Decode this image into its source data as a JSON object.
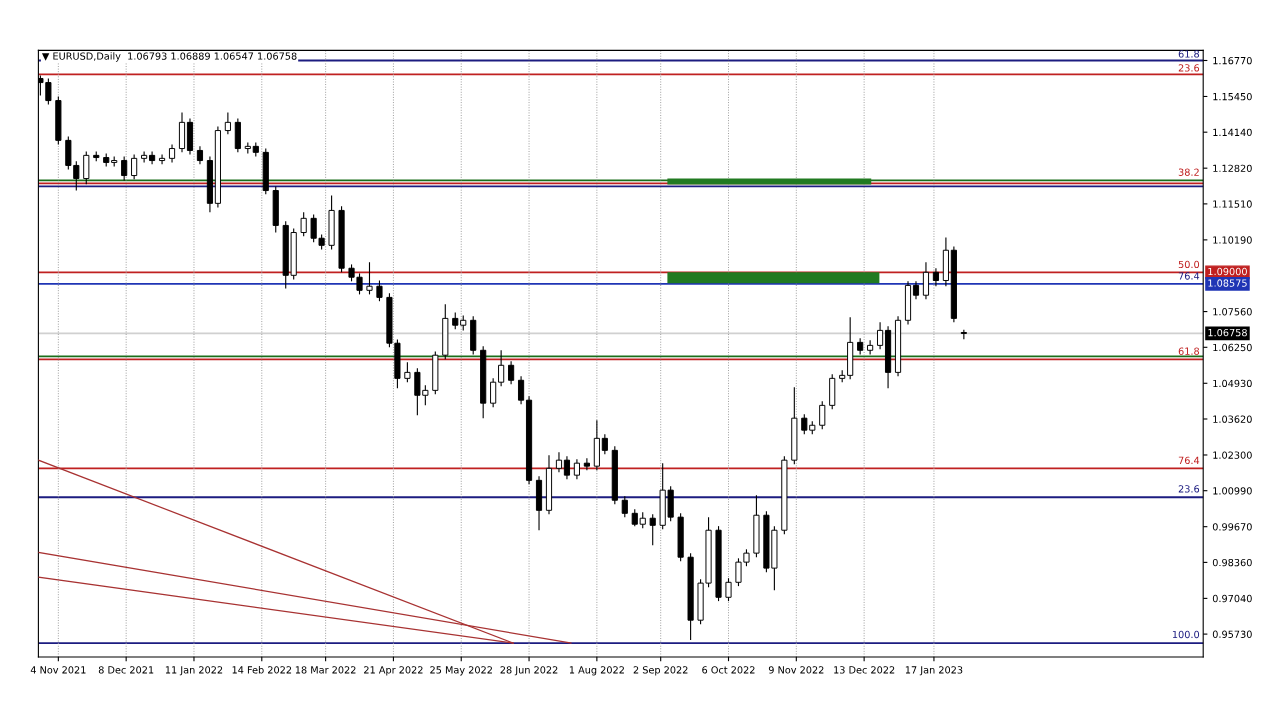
{
  "chart_data": {
    "type": "candlestick",
    "title": "▼ EURUSD,Daily  1.06793 1.06889 1.06547 1.06758",
    "x": [
      "2021-10-26",
      "2021-10-30",
      "2021-11-04",
      "2021-11-09",
      "2021-11-13",
      "2021-11-18",
      "2021-11-23",
      "2021-11-28",
      "2021-12-02",
      "2021-12-07",
      "2021-12-12",
      "2021-12-17",
      "2021-12-21",
      "2021-12-26",
      "2021-12-31",
      "2022-01-05",
      "2022-01-09",
      "2022-01-14",
      "2022-01-19",
      "2022-01-23",
      "2022-01-28",
      "2022-02-02",
      "2022-02-07",
      "2022-02-11",
      "2022-02-16",
      "2022-02-21",
      "2022-02-26",
      "2022-03-02",
      "2022-03-07",
      "2022-03-12",
      "2022-03-16",
      "2022-03-21",
      "2022-03-26",
      "2022-03-31",
      "2022-04-04",
      "2022-04-09",
      "2022-04-14",
      "2022-04-19",
      "2022-04-23",
      "2022-04-28",
      "2022-05-03",
      "2022-05-07",
      "2022-05-12",
      "2022-05-17",
      "2022-05-22",
      "2022-05-26",
      "2022-05-31",
      "2022-06-05",
      "2022-06-10",
      "2022-06-14",
      "2022-06-19",
      "2022-06-24",
      "2022-06-28",
      "2022-07-03",
      "2022-07-08",
      "2022-07-13",
      "2022-07-17",
      "2022-07-22",
      "2022-07-27",
      "2022-08-01",
      "2022-08-05",
      "2022-08-10",
      "2022-08-15",
      "2022-08-20",
      "2022-08-24",
      "2022-08-29",
      "2022-09-03",
      "2022-09-07",
      "2022-09-12",
      "2022-09-17",
      "2022-09-22",
      "2022-09-26",
      "2022-10-01",
      "2022-10-06",
      "2022-10-11",
      "2022-10-15",
      "2022-10-20",
      "2022-10-25",
      "2022-10-29",
      "2022-11-03",
      "2022-11-08",
      "2022-11-13",
      "2022-11-17",
      "2022-11-22",
      "2022-11-27",
      "2022-12-02",
      "2022-12-06",
      "2022-12-11",
      "2022-12-16",
      "2022-12-21",
      "2022-12-25",
      "2022-12-30",
      "2023-01-04",
      "2023-01-08",
      "2023-01-13",
      "2023-01-18",
      "2023-01-23",
      "2023-01-27",
      "2023-02-01"
    ],
    "ohlc": [
      [
        1.1611,
        1.1622,
        1.1549,
        1.1596
      ],
      [
        1.1596,
        1.1611,
        1.1516,
        1.153
      ],
      [
        1.153,
        1.1545,
        1.1369,
        1.1384
      ],
      [
        1.1384,
        1.1398,
        1.1277,
        1.1292
      ],
      [
        1.1292,
        1.1307,
        1.12,
        1.1244
      ],
      [
        1.1244,
        1.1343,
        1.1223,
        1.1329
      ],
      [
        1.1329,
        1.1343,
        1.1307,
        1.1321
      ],
      [
        1.1321,
        1.1336,
        1.1288,
        1.1303
      ],
      [
        1.1303,
        1.1325,
        1.1288,
        1.131
      ],
      [
        1.131,
        1.1325,
        1.1237,
        1.1255
      ],
      [
        1.1255,
        1.1332,
        1.1241,
        1.1318
      ],
      [
        1.1318,
        1.1343,
        1.1303,
        1.1329
      ],
      [
        1.1329,
        1.1343,
        1.1296,
        1.131
      ],
      [
        1.131,
        1.1332,
        1.1296,
        1.1318
      ],
      [
        1.1318,
        1.1369,
        1.1303,
        1.1354
      ],
      [
        1.1354,
        1.1486,
        1.134,
        1.145
      ],
      [
        1.145,
        1.1464,
        1.1332,
        1.1347
      ],
      [
        1.1347,
        1.1362,
        1.1296,
        1.131
      ],
      [
        1.131,
        1.1325,
        1.112,
        1.1153
      ],
      [
        1.1153,
        1.1435,
        1.1138,
        1.142
      ],
      [
        1.142,
        1.1486,
        1.1406,
        1.145
      ],
      [
        1.145,
        1.1464,
        1.134,
        1.1354
      ],
      [
        1.1354,
        1.1376,
        1.1336,
        1.1362
      ],
      [
        1.1362,
        1.1376,
        1.1325,
        1.134
      ],
      [
        1.134,
        1.1354,
        1.1186,
        1.12
      ],
      [
        1.12,
        1.1215,
        1.1046,
        1.1072
      ],
      [
        1.1072,
        1.1087,
        1.0841,
        1.0889
      ],
      [
        1.0889,
        1.1061,
        1.0874,
        1.1046
      ],
      [
        1.1046,
        1.112,
        1.1032,
        1.1098
      ],
      [
        1.1098,
        1.1112,
        1.101,
        1.1025
      ],
      [
        1.1025,
        1.1039,
        1.0984,
        1.0999
      ],
      [
        1.0999,
        1.1182,
        1.0984,
        1.1127
      ],
      [
        1.1127,
        1.1142,
        1.09,
        1.0915
      ],
      [
        1.0915,
        1.0929,
        1.0867,
        1.0882
      ],
      [
        1.0882,
        1.0896,
        1.0819,
        1.0834
      ],
      [
        1.0834,
        1.0937,
        1.0819,
        1.0849
      ],
      [
        1.0849,
        1.087,
        1.0794,
        1.0808
      ],
      [
        1.0808,
        1.0823,
        1.0625,
        1.064
      ],
      [
        1.064,
        1.0654,
        1.0475,
        1.0511
      ],
      [
        1.0511,
        1.057,
        1.0497,
        1.0533
      ],
      [
        1.0533,
        1.0548,
        1.0376,
        1.0449
      ],
      [
        1.0449,
        1.0486,
        1.0412,
        1.0467
      ],
      [
        1.0467,
        1.061,
        1.0453,
        1.0596
      ],
      [
        1.0596,
        1.0783,
        1.0581,
        1.0731
      ],
      [
        1.0731,
        1.0753,
        1.0691,
        1.0706
      ],
      [
        1.0706,
        1.0742,
        1.0687,
        1.0724
      ],
      [
        1.0724,
        1.0739,
        1.0599,
        1.0614
      ],
      [
        1.0614,
        1.0629,
        1.0365,
        1.042
      ],
      [
        1.042,
        1.0511,
        1.0405,
        1.0497
      ],
      [
        1.0497,
        1.0614,
        1.0482,
        1.0559
      ],
      [
        1.0559,
        1.0574,
        1.0489,
        1.0504
      ],
      [
        1.0504,
        1.0519,
        1.0416,
        1.0431
      ],
      [
        1.0431,
        1.0445,
        1.0123,
        1.0137
      ],
      [
        1.0137,
        1.0152,
        0.9954,
        1.0027
      ],
      [
        1.0027,
        1.0229,
        1.0013,
        1.0181
      ],
      [
        1.0181,
        1.024,
        1.0167,
        1.0211
      ],
      [
        1.0211,
        1.0225,
        1.0141,
        1.0156
      ],
      [
        1.0156,
        1.0214,
        1.0141,
        1.02
      ],
      [
        1.02,
        1.0218,
        1.0174,
        1.0189
      ],
      [
        1.0189,
        1.0357,
        1.0174,
        1.0291
      ],
      [
        1.0291,
        1.0306,
        1.0233,
        1.0247
      ],
      [
        1.0247,
        1.0262,
        1.0049,
        1.0064
      ],
      [
        1.0064,
        1.0079,
        1.0002,
        1.0016
      ],
      [
        1.0016,
        1.0031,
        0.9969,
        0.9976
      ],
      [
        0.9976,
        1.002,
        0.9961,
        0.9998
      ],
      [
        0.9998,
        1.0013,
        0.9899,
        0.9972
      ],
      [
        0.9972,
        1.02,
        0.9958,
        1.0101
      ],
      [
        1.0101,
        1.0115,
        0.9987,
        1.0002
      ],
      [
        1.0002,
        1.0016,
        0.984,
        0.9855
      ],
      [
        0.9855,
        0.987,
        0.9551,
        0.9624
      ],
      [
        0.9624,
        0.9774,
        0.9609,
        0.976
      ],
      [
        0.976,
        1.0002,
        0.9745,
        0.9954
      ],
      [
        0.9954,
        0.9969,
        0.9694,
        0.9708
      ],
      [
        0.9708,
        0.9778,
        0.9694,
        0.9763
      ],
      [
        0.9763,
        0.9851,
        0.9749,
        0.9837
      ],
      [
        0.9837,
        0.9884,
        0.9822,
        0.987
      ],
      [
        0.987,
        1.0082,
        0.9855,
        1.0009
      ],
      [
        1.0009,
        1.0024,
        0.98,
        0.9815
      ],
      [
        0.9815,
        0.9969,
        0.9734,
        0.9954
      ],
      [
        0.9954,
        1.0225,
        0.9939,
        1.0211
      ],
      [
        1.0211,
        1.0478,
        1.0196,
        1.0365
      ],
      [
        1.0365,
        1.0379,
        1.0306,
        1.0321
      ],
      [
        1.0321,
        1.0354,
        1.0306,
        1.0339
      ],
      [
        1.0339,
        1.0427,
        1.0324,
        1.0412
      ],
      [
        1.0412,
        1.0526,
        1.0398,
        1.0511
      ],
      [
        1.0511,
        1.0541,
        1.0497,
        1.0522
      ],
      [
        1.0522,
        1.0735,
        1.0508,
        1.0643
      ],
      [
        1.0643,
        1.0658,
        1.0599,
        1.0614
      ],
      [
        1.0614,
        1.0651,
        1.0599,
        1.0632
      ],
      [
        1.0632,
        1.0717,
        1.0618,
        1.0687
      ],
      [
        1.0687,
        1.0702,
        1.0475,
        1.0533
      ],
      [
        1.0533,
        1.0739,
        1.0519,
        1.0724
      ],
      [
        1.0724,
        1.0867,
        1.0709,
        1.0852
      ],
      [
        1.0852,
        1.0867,
        1.0801,
        1.0816
      ],
      [
        1.0816,
        1.0937,
        1.0801,
        1.09
      ],
      [
        1.09,
        1.0915,
        1.0849,
        1.087
      ],
      [
        1.087,
        1.1028,
        1.0849,
        1.0981
      ],
      [
        1.0981,
        1.0995,
        1.0717,
        1.0731
      ],
      [
        1.06793,
        1.06889,
        1.06547,
        1.06758
      ]
    ],
    "series": [
      {
        "type": "line",
        "color": "#a83232",
        "x": [
          "2021-10-25",
          "2022-06-20"
        ],
        "values": [
          1.0211,
          0.954
        ]
      },
      {
        "type": "line",
        "color": "#a83232",
        "x": [
          "2021-10-25",
          "2022-07-19"
        ],
        "values": [
          0.9873,
          0.954
        ]
      },
      {
        "type": "line",
        "color": "#a83232",
        "x": [
          "2021-10-25",
          "2022-06-20"
        ],
        "values": [
          0.9782,
          0.954
        ]
      }
    ],
    "ref_lines": [
      {
        "axis": "y",
        "value": 1.1677,
        "color": "#1c1c80"
      },
      {
        "axis": "y",
        "value": 1.1626,
        "color": "#c02020"
      },
      {
        "axis": "y",
        "value": 1.1237,
        "color": "#1a6e1a"
      },
      {
        "axis": "y",
        "value": 1.1226,
        "color": "#c02020"
      },
      {
        "axis": "y",
        "value": 1.1215,
        "color": "#1c1c80"
      },
      {
        "axis": "y",
        "value": 1.09,
        "label": "1.09000",
        "color": "#c02020"
      },
      {
        "axis": "y",
        "value": 1.08575,
        "label": "1.08575",
        "color": "#1f35b5"
      },
      {
        "axis": "y",
        "value": 1.0592,
        "color": "#1a6e1a"
      },
      {
        "axis": "y",
        "value": 1.0581,
        "color": "#c02020"
      },
      {
        "axis": "y",
        "value": 1.0181,
        "color": "#c02020"
      },
      {
        "axis": "y",
        "value": 1.0075,
        "color": "#1c1c80"
      },
      {
        "axis": "y",
        "value": 0.954,
        "color": "#1c1c80"
      },
      {
        "axis": "y",
        "value": 1.06758,
        "label": "1.06758",
        "color": "#d0d0d0"
      }
    ],
    "bands": [
      {
        "axis": "y",
        "from": 1.1222,
        "to": 1.1244,
        "color": "#217a21"
      },
      {
        "axis": "y",
        "from": 1.086,
        "to": 1.09,
        "color": "#217a21"
      }
    ],
    "annotations": [
      "61.8",
      "23.6",
      "38.2",
      "50.0",
      "76.4",
      "61.8",
      "76.4",
      "23.6",
      "100.0"
    ],
    "xlim": [
      "2021-10-25",
      "2023-06-01"
    ],
    "xticks": [
      {
        "value": "2021-11-04",
        "label": "4 Nov 2021"
      },
      {
        "value": "2021-12-08",
        "label": "8 Dec 2021"
      },
      {
        "value": "2022-01-11",
        "label": "11 Jan 2022"
      },
      {
        "value": "2022-02-14",
        "label": "14 Feb 2022"
      },
      {
        "value": "2022-03-18",
        "label": "18 Mar 2022"
      },
      {
        "value": "2022-04-21",
        "label": "21 Apr 2022"
      },
      {
        "value": "2022-05-25",
        "label": "25 May 2022"
      },
      {
        "value": "2022-06-28",
        "label": "28 Jun 2022"
      },
      {
        "value": "2022-08-01",
        "label": "1 Aug 2022"
      },
      {
        "value": "2022-09-02",
        "label": "2 Sep 2022"
      },
      {
        "value": "2022-10-06",
        "label": "6 Oct 2022"
      },
      {
        "value": "2022-11-09",
        "label": "9 Nov 2022"
      },
      {
        "value": "2022-12-13",
        "label": "13 Dec 2022"
      },
      {
        "value": "2023-01-17",
        "label": "17 Jan 2023"
      }
    ],
    "ylim": [
      0.9489,
      1.1714
    ],
    "yticks": [
      {
        "value": 1.1677,
        "label": "1.16770"
      },
      {
        "value": 1.1545,
        "label": "1.15450"
      },
      {
        "value": 1.1414,
        "label": "1.14140"
      },
      {
        "value": 1.1282,
        "label": "1.12820"
      },
      {
        "value": 1.1151,
        "label": "1.11510"
      },
      {
        "value": 1.1019,
        "label": "1.10190"
      },
      {
        "value": 1.0756,
        "label": "1.07560"
      },
      {
        "value": 1.0625,
        "label": "1.06250"
      },
      {
        "value": 1.0493,
        "label": "1.04930"
      },
      {
        "value": 1.0362,
        "label": "1.03620"
      },
      {
        "value": 1.023,
        "label": "1.02300"
      },
      {
        "value": 1.0099,
        "label": "1.00990"
      },
      {
        "value": 0.9967,
        "label": "0.99670"
      },
      {
        "value": 0.9836,
        "label": "0.98360"
      },
      {
        "value": 0.9704,
        "label": "0.97040"
      },
      {
        "value": 0.9573,
        "label": "0.95730"
      }
    ],
    "grid": "x",
    "legend": false
  }
}
